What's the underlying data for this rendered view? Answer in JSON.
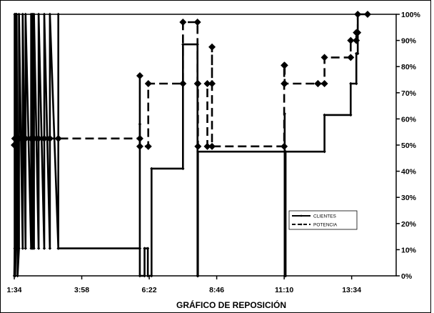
{
  "chart_data": {
    "type": "line",
    "title": "",
    "xlabel": "GRÁFICO DE REPOSICIÓN",
    "ylabel": "",
    "x_unit": "minutes",
    "xlim": [
      94,
      909
    ],
    "ylim": [
      0,
      100
    ],
    "x_ticks": [
      {
        "value": 94,
        "label": "1:34"
      },
      {
        "value": 238,
        "label": "3:58"
      },
      {
        "value": 382,
        "label": "6:22"
      },
      {
        "value": 526,
        "label": "8:46"
      },
      {
        "value": 670,
        "label": "11:10"
      },
      {
        "value": 814,
        "label": "13:34"
      }
    ],
    "y_ticks": [
      {
        "value": 0,
        "label": "0%"
      },
      {
        "value": 10,
        "label": "10%"
      },
      {
        "value": 20,
        "label": "20%"
      },
      {
        "value": 30,
        "label": "30%"
      },
      {
        "value": 40,
        "label": "40%"
      },
      {
        "value": 50,
        "label": "50%"
      },
      {
        "value": 60,
        "label": "60%"
      },
      {
        "value": 70,
        "label": "70%"
      },
      {
        "value": 80,
        "label": "80%"
      },
      {
        "value": 90,
        "label": "90%"
      },
      {
        "value": 100,
        "label": "100%"
      }
    ],
    "grid": false,
    "y_axis_side": "right",
    "legend_position": "lower-right",
    "series": [
      {
        "name": "CLIENTES",
        "style": "solid",
        "color": "#000000",
        "points": [
          [
            94,
            0
          ],
          [
            95,
            10.5
          ],
          [
            95,
            100
          ],
          [
            96,
            10.5
          ],
          [
            96,
            0
          ],
          [
            97,
            10.5
          ],
          [
            97,
            100
          ],
          [
            99,
            10.5
          ],
          [
            99,
            100
          ],
          [
            101,
            10.5
          ],
          [
            101,
            0
          ],
          [
            104,
            10.5
          ],
          [
            104,
            100
          ],
          [
            112,
            10.5
          ],
          [
            112,
            100
          ],
          [
            118,
            10.5
          ],
          [
            118,
            100
          ],
          [
            130,
            10.5
          ],
          [
            130,
            100
          ],
          [
            133,
            10.5
          ],
          [
            133,
            100
          ],
          [
            136,
            10.5
          ],
          [
            136,
            100
          ],
          [
            146,
            10.5
          ],
          [
            146,
            100
          ],
          [
            158,
            10.5
          ],
          [
            158,
            100
          ],
          [
            170,
            10.5
          ],
          [
            170,
            100
          ],
          [
            188,
            10.5
          ],
          [
            188,
            100
          ],
          [
            188,
            10.5
          ],
          [
            362,
            10.5
          ],
          [
            362,
            58
          ],
          [
            362,
            0
          ],
          [
            372,
            0
          ],
          [
            372,
            10.5
          ],
          [
            379,
            10.5
          ],
          [
            379,
            0
          ],
          [
            387,
            0
          ],
          [
            387,
            41
          ],
          [
            454,
            41
          ],
          [
            454,
            88.5
          ],
          [
            485,
            88.5
          ],
          [
            485,
            0
          ],
          [
            486,
            0
          ],
          [
            486,
            47.5
          ],
          [
            671,
            47.5
          ],
          [
            671,
            62
          ],
          [
            671,
            0
          ],
          [
            673,
            0
          ],
          [
            673,
            47.5
          ],
          [
            756,
            47.5
          ],
          [
            756,
            61.5
          ],
          [
            812,
            61.5
          ],
          [
            812,
            73.5
          ],
          [
            824,
            73.5
          ],
          [
            824,
            85
          ],
          [
            827,
            85
          ],
          [
            827,
            100
          ],
          [
            848,
            100
          ]
        ]
      },
      {
        "name": "POTENCIA",
        "style": "dashed",
        "color": "#000000",
        "points": [
          [
            94,
            50
          ],
          [
            95,
            52.5
          ],
          [
            97,
            52.5
          ],
          [
            99,
            52.5
          ],
          [
            101,
            52.5
          ],
          [
            104,
            52.5
          ],
          [
            112,
            52.5
          ],
          [
            118,
            52.5
          ],
          [
            130,
            52.5
          ],
          [
            133,
            52.5
          ],
          [
            136,
            52.5
          ],
          [
            146,
            52.5
          ],
          [
            158,
            52.5
          ],
          [
            170,
            52.5
          ],
          [
            188,
            52.5
          ],
          [
            362,
            52.5
          ],
          [
            362,
            76.5
          ],
          [
            362,
            49.5
          ],
          [
            380,
            49.5
          ],
          [
            380,
            73.5
          ],
          [
            454,
            73.5
          ],
          [
            454,
            97
          ],
          [
            485,
            97
          ],
          [
            485,
            73.5
          ],
          [
            486,
            73.5
          ],
          [
            486,
            49.5
          ],
          [
            506,
            49.5
          ],
          [
            506,
            73.5
          ],
          [
            516,
            73.5
          ],
          [
            516,
            87.5
          ],
          [
            516,
            49.5
          ],
          [
            670,
            49.5
          ],
          [
            670,
            73.5
          ],
          [
            670,
            80.5
          ],
          [
            671,
            80.5
          ],
          [
            671,
            73.5
          ],
          [
            742,
            73.5
          ],
          [
            742,
            73.5
          ],
          [
            756,
            73.5
          ],
          [
            756,
            83.5
          ],
          [
            812,
            83.5
          ],
          [
            812,
            90
          ],
          [
            824,
            90
          ],
          [
            824,
            93
          ],
          [
            827,
            93
          ],
          [
            827,
            100
          ],
          [
            848,
            100
          ]
        ]
      }
    ]
  }
}
